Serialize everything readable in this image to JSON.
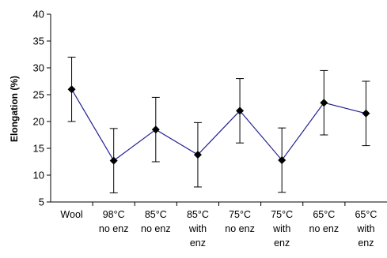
{
  "chart_data": {
    "type": "line",
    "ylabel": "Elongation (%)",
    "xlabel": "",
    "ylim": [
      5,
      40
    ],
    "yticks": [
      5,
      10,
      15,
      20,
      25,
      30,
      35,
      40
    ],
    "grid": false,
    "categories": [
      [
        "Wool"
      ],
      [
        "98°C",
        "no enz"
      ],
      [
        "85°C",
        "no enz"
      ],
      [
        "85°C",
        "with",
        "enz"
      ],
      [
        "75°C",
        "no enz"
      ],
      [
        "75°C",
        "with",
        "enz"
      ],
      [
        "65°C",
        "no enz"
      ],
      [
        "65°C",
        "with",
        "enz"
      ]
    ],
    "series": [
      {
        "values": [
          26.0,
          12.7,
          18.5,
          13.8,
          22.0,
          12.8,
          23.5,
          21.5
        ],
        "error": [
          6.0,
          6.0,
          6.0,
          6.0,
          6.0,
          6.0,
          6.0,
          6.0
        ]
      }
    ],
    "colors": {
      "line": "#1f1f8f",
      "marker": "#000000",
      "errorbar": "#000000",
      "axis": "#000000"
    }
  }
}
